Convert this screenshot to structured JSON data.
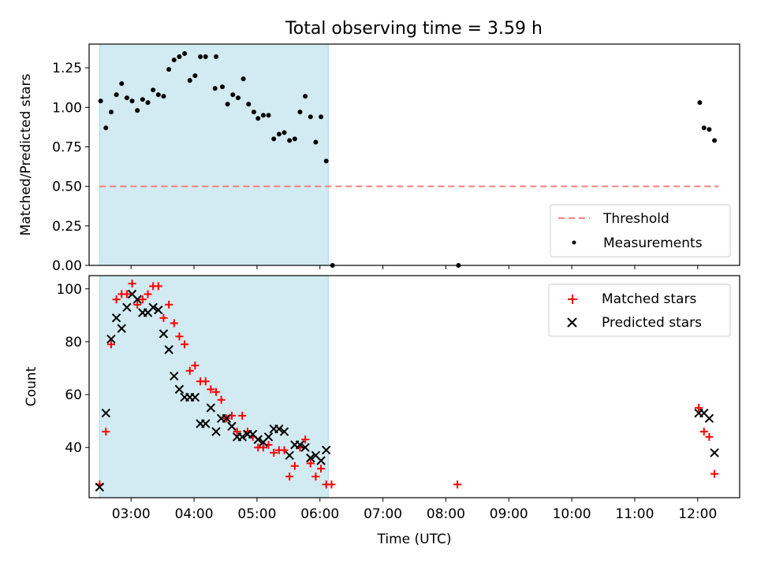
{
  "title": "Total observing time = 3.59 h",
  "colors": {
    "threshold": "#f08080",
    "measurement": "#000000",
    "matched": "#ff0000",
    "predicted": "#000000",
    "span": "#add8e6"
  },
  "chart_data": [
    {
      "type": "scatter",
      "title": "Total observing time = 3.59 h",
      "xlabel": "",
      "ylabel": "Matched/Predicted stars",
      "xlim": [
        "02:20",
        "12:40"
      ],
      "ylim": [
        0,
        1.4
      ],
      "yticks": [
        0.0,
        0.25,
        0.5,
        0.75,
        1.0,
        1.25
      ],
      "ytick_labels": [
        "0.00",
        "0.25",
        "0.50",
        "0.75",
        "1.00",
        "1.25"
      ],
      "xticks": [
        "03:00",
        "04:00",
        "05:00",
        "06:00",
        "07:00",
        "08:00",
        "09:00",
        "10:00",
        "11:00",
        "12:00"
      ],
      "legend_position": "lower-right",
      "shaded_span": {
        "start": "02:30",
        "end": "06:08"
      },
      "threshold": {
        "name": "Threshold",
        "value": 0.5,
        "x_start": "02:30",
        "x_end": "12:20"
      },
      "series": [
        {
          "name": "Measurements",
          "points": [
            [
              "02:31",
              1.04
            ],
            [
              "02:36",
              0.87
            ],
            [
              "02:41",
              0.97
            ],
            [
              "02:46",
              1.08
            ],
            [
              "02:51",
              1.15
            ],
            [
              "02:56",
              1.06
            ],
            [
              "03:01",
              1.04
            ],
            [
              "03:06",
              0.98
            ],
            [
              "03:11",
              1.05
            ],
            [
              "03:16",
              1.03
            ],
            [
              "03:21",
              1.11
            ],
            [
              "03:26",
              1.08
            ],
            [
              "03:31",
              1.07
            ],
            [
              "03:36",
              1.24
            ],
            [
              "03:41",
              1.3
            ],
            [
              "03:46",
              1.32
            ],
            [
              "03:51",
              1.34
            ],
            [
              "03:56",
              1.17
            ],
            [
              "04:01",
              1.2
            ],
            [
              "04:06",
              1.32
            ],
            [
              "04:11",
              1.32
            ],
            [
              "04:20",
              1.12
            ],
            [
              "04:21",
              1.32
            ],
            [
              "04:27",
              1.13
            ],
            [
              "04:32",
              1.02
            ],
            [
              "04:37",
              1.08
            ],
            [
              "04:42",
              1.06
            ],
            [
              "04:47",
              1.18
            ],
            [
              "04:52",
              1.02
            ],
            [
              "04:57",
              0.97
            ],
            [
              "05:01",
              0.93
            ],
            [
              "05:06",
              0.95
            ],
            [
              "05:11",
              0.95
            ],
            [
              "05:16",
              0.8
            ],
            [
              "05:21",
              0.83
            ],
            [
              "05:26",
              0.84
            ],
            [
              "05:31",
              0.79
            ],
            [
              "05:36",
              0.8
            ],
            [
              "05:41",
              0.97
            ],
            [
              "05:46",
              1.07
            ],
            [
              "05:51",
              0.94
            ],
            [
              "05:56",
              0.78
            ],
            [
              "06:01",
              0.94
            ],
            [
              "06:06",
              0.66
            ],
            [
              "06:12",
              0.0
            ],
            [
              "08:12",
              0.0
            ],
            [
              "12:02",
              1.03
            ],
            [
              "12:06",
              0.87
            ],
            [
              "12:11",
              0.86
            ],
            [
              "12:16",
              0.79
            ]
          ]
        }
      ]
    },
    {
      "type": "scatter",
      "title": "",
      "xlabel": "Time (UTC)",
      "ylabel": "Count",
      "xlim": [
        "02:20",
        "12:40"
      ],
      "ylim": [
        21,
        105
      ],
      "yticks": [
        40,
        60,
        80,
        100
      ],
      "ytick_labels": [
        "40",
        "60",
        "80",
        "100"
      ],
      "xticks": [
        "03:00",
        "04:00",
        "05:00",
        "06:00",
        "07:00",
        "08:00",
        "09:00",
        "10:00",
        "11:00",
        "12:00"
      ],
      "legend_position": "upper-right",
      "shaded_span": {
        "start": "02:30",
        "end": "06:08"
      },
      "series": [
        {
          "name": "Matched stars",
          "marker": "plus",
          "points": [
            [
              "02:30",
              26
            ],
            [
              "02:36",
              46
            ],
            [
              "02:41",
              79
            ],
            [
              "02:46",
              96
            ],
            [
              "02:51",
              98
            ],
            [
              "02:56",
              98
            ],
            [
              "03:01",
              102
            ],
            [
              "03:06",
              94
            ],
            [
              "03:11",
              96
            ],
            [
              "03:16",
              98
            ],
            [
              "03:21",
              101
            ],
            [
              "03:26",
              101
            ],
            [
              "03:31",
              89
            ],
            [
              "03:36",
              94
            ],
            [
              "03:41",
              87
            ],
            [
              "03:46",
              82
            ],
            [
              "03:51",
              79
            ],
            [
              "03:56",
              69
            ],
            [
              "04:01",
              71
            ],
            [
              "04:06",
              65
            ],
            [
              "04:11",
              65
            ],
            [
              "04:16",
              62
            ],
            [
              "04:21",
              61
            ],
            [
              "04:26",
              58
            ],
            [
              "04:31",
              51
            ],
            [
              "04:36",
              52
            ],
            [
              "04:41",
              46
            ],
            [
              "04:46",
              52
            ],
            [
              "04:51",
              46
            ],
            [
              "04:56",
              44
            ],
            [
              "05:01",
              40
            ],
            [
              "05:06",
              40
            ],
            [
              "05:11",
              41
            ],
            [
              "05:16",
              38
            ],
            [
              "05:21",
              39
            ],
            [
              "05:26",
              39
            ],
            [
              "05:31",
              29
            ],
            [
              "05:36",
              33
            ],
            [
              "05:41",
              40
            ],
            [
              "05:46",
              43
            ],
            [
              "05:51",
              34
            ],
            [
              "05:56",
              29
            ],
            [
              "06:01",
              32
            ],
            [
              "06:06",
              26
            ],
            [
              "06:11",
              26
            ],
            [
              "08:11",
              26
            ],
            [
              "12:01",
              55
            ],
            [
              "12:06",
              46
            ],
            [
              "12:11",
              44
            ],
            [
              "12:16",
              30
            ]
          ]
        },
        {
          "name": "Predicted stars",
          "marker": "x",
          "points": [
            [
              "02:30",
              25
            ],
            [
              "02:36",
              53
            ],
            [
              "02:41",
              81
            ],
            [
              "02:46",
              89
            ],
            [
              "02:51",
              85
            ],
            [
              "02:56",
              93
            ],
            [
              "03:01",
              98
            ],
            [
              "03:06",
              96
            ],
            [
              "03:11",
              91
            ],
            [
              "03:16",
              91
            ],
            [
              "03:21",
              93
            ],
            [
              "03:26",
              92
            ],
            [
              "03:31",
              83
            ],
            [
              "03:36",
              77
            ],
            [
              "03:41",
              67
            ],
            [
              "03:46",
              62
            ],
            [
              "03:51",
              59
            ],
            [
              "03:56",
              59
            ],
            [
              "04:01",
              59
            ],
            [
              "04:06",
              49
            ],
            [
              "04:11",
              49
            ],
            [
              "04:16",
              55
            ],
            [
              "04:21",
              46
            ],
            [
              "04:26",
              51
            ],
            [
              "04:31",
              51
            ],
            [
              "04:36",
              48
            ],
            [
              "04:41",
              44
            ],
            [
              "04:46",
              44
            ],
            [
              "04:51",
              45
            ],
            [
              "04:56",
              45
            ],
            [
              "05:01",
              43
            ],
            [
              "05:06",
              42
            ],
            [
              "05:11",
              44
            ],
            [
              "05:16",
              47
            ],
            [
              "05:21",
              47
            ],
            [
              "05:26",
              46
            ],
            [
              "05:31",
              37
            ],
            [
              "05:36",
              41
            ],
            [
              "05:41",
              41
            ],
            [
              "05:46",
              40
            ],
            [
              "05:51",
              36
            ],
            [
              "05:56",
              37
            ],
            [
              "06:01",
              35
            ],
            [
              "06:06",
              39
            ],
            [
              "12:01",
              53
            ],
            [
              "12:06",
              53
            ],
            [
              "12:11",
              51
            ],
            [
              "12:16",
              38
            ]
          ]
        }
      ]
    }
  ]
}
